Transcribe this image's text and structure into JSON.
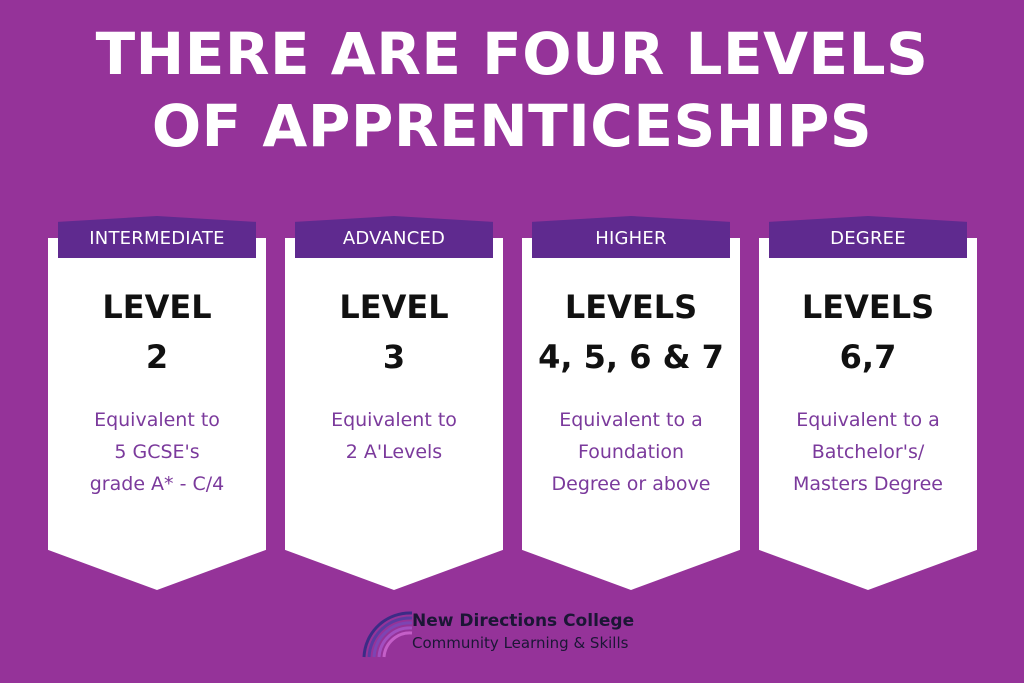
{
  "headline": {
    "line1": "THERE ARE FOUR LEVELS",
    "line2": "OF APPRENTICESHIPS"
  },
  "cards": [
    {
      "tab": "INTERMEDIATE",
      "level_line1": "LEVEL",
      "level_line2": "2",
      "desc": [
        "Equivalent to",
        "5 GCSE's",
        "grade A* - C/4"
      ]
    },
    {
      "tab": "ADVANCED",
      "level_line1": "LEVEL",
      "level_line2": "3",
      "desc": [
        "Equivalent to",
        "2 A'Levels"
      ]
    },
    {
      "tab": "HIGHER",
      "level_line1": "LEVELS",
      "level_line2": "4, 5, 6 & 7",
      "desc": [
        "Equivalent to a",
        "Foundation",
        "Degree or above"
      ]
    },
    {
      "tab": "DEGREE",
      "level_line1": "LEVELS",
      "level_line2": "6,7",
      "desc": [
        "Equivalent to a",
        "Batchelor's/",
        "Masters Degree"
      ]
    }
  ],
  "logo": {
    "name": "New Directions College",
    "subtitle": "Community Learning & Skills",
    "icon": "rainbow-arc-icon"
  },
  "colors": {
    "background": "#953399",
    "tab": "#5f2a8f",
    "card": "#ffffff",
    "description_text": "#7b3a9c",
    "level_text": "#111111"
  }
}
